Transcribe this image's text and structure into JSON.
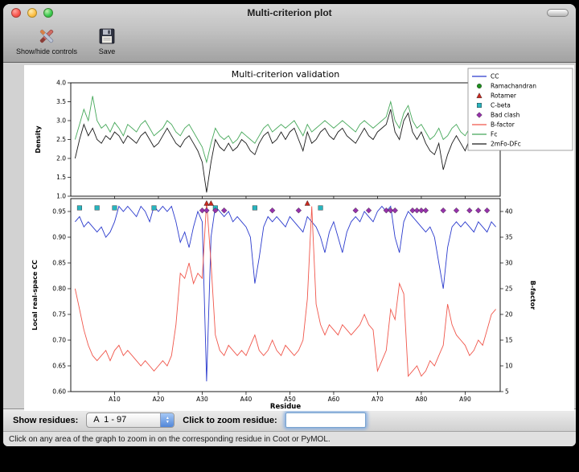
{
  "window": {
    "title": "Multi-criterion plot",
    "toolbar": {
      "items": [
        {
          "label": "Show/hide controls",
          "icon": "crossed-tools-icon"
        },
        {
          "label": "Save",
          "icon": "floppy-disk-icon"
        }
      ]
    },
    "controls": {
      "show_residues_label": "Show residues:",
      "residue_range_value": "A  1 - 97",
      "zoom_residue_label": "Click to zoom residue:",
      "zoom_input_value": ""
    },
    "status_bar": "Click on any area of the graph to zoom in on the corresponding residue in Coot or PyMOL."
  },
  "chart_data": {
    "type": "line",
    "title": "Multi-criterion validation",
    "xlabel": "Residue",
    "x_range": [
      0,
      98
    ],
    "x_ticks": {
      "values": [
        10,
        20,
        30,
        40,
        50,
        60,
        70,
        80,
        90
      ],
      "labels": [
        "A10",
        "A20",
        "A30",
        "A40",
        "A50",
        "A60",
        "A70",
        "A80",
        "A90"
      ]
    },
    "legend": [
      {
        "label": "CC",
        "marker": "line",
        "color": "#2a3acd"
      },
      {
        "label": "Ramachandran",
        "marker": "circle",
        "color": "#1e8f1e"
      },
      {
        "label": "Rotamer",
        "marker": "triangle",
        "color": "#c8281e"
      },
      {
        "label": "C-beta",
        "marker": "square",
        "color": "#28b4be"
      },
      {
        "label": "Bad clash",
        "marker": "diamond",
        "color": "#9632aa"
      },
      {
        "label": "B-factor",
        "marker": "line",
        "color": "#f0564b"
      },
      {
        "label": "Fc",
        "marker": "line",
        "color": "#46a85a"
      },
      {
        "label": "2mFo-DFc",
        "marker": "line",
        "color": "#1a1a1a"
      }
    ],
    "top_plot": {
      "ylabel": "Density",
      "ylim": [
        1.0,
        4.0
      ],
      "yticks": [
        1.0,
        1.5,
        2.0,
        2.5,
        3.0,
        3.5,
        4.0
      ],
      "ytick_labels": [
        "1.0",
        "1.5",
        "2.0",
        "2.5",
        "3.0",
        "3.5",
        "4.0"
      ],
      "series": [
        {
          "name": "Fc",
          "color": "#46a85a",
          "values": [
            2.5,
            2.9,
            3.3,
            3.0,
            3.65,
            3.0,
            2.8,
            2.9,
            2.7,
            2.95,
            2.8,
            2.6,
            2.9,
            2.8,
            2.7,
            2.9,
            3.0,
            2.8,
            2.6,
            2.7,
            2.8,
            3.0,
            2.9,
            2.7,
            2.6,
            2.8,
            2.9,
            2.7,
            2.5,
            2.3,
            1.9,
            2.4,
            2.8,
            2.6,
            2.5,
            2.6,
            2.4,
            2.5,
            2.7,
            2.6,
            2.5,
            2.4,
            2.6,
            2.8,
            2.9,
            2.7,
            2.8,
            2.9,
            2.8,
            2.9,
            3.0,
            2.8,
            2.6,
            2.9,
            2.7,
            2.8,
            2.9,
            3.0,
            2.9,
            2.8,
            2.9,
            3.0,
            2.9,
            2.8,
            2.7,
            2.9,
            3.0,
            2.9,
            2.8,
            2.9,
            3.0,
            3.1,
            3.5,
            3.0,
            2.8,
            3.2,
            3.4,
            3.0,
            2.8,
            2.9,
            2.7,
            2.5,
            2.6,
            2.8,
            2.5,
            2.6,
            2.8,
            2.9,
            2.7,
            2.6,
            2.8,
            3.0,
            2.9,
            3.1,
            3.3,
            3.6,
            3.2
          ]
        },
        {
          "name": "2mFo-DFc",
          "color": "#1a1a1a",
          "values": [
            2.0,
            2.5,
            2.9,
            2.6,
            2.8,
            2.5,
            2.4,
            2.6,
            2.5,
            2.7,
            2.6,
            2.4,
            2.6,
            2.5,
            2.4,
            2.6,
            2.7,
            2.5,
            2.3,
            2.4,
            2.6,
            2.8,
            2.6,
            2.4,
            2.3,
            2.5,
            2.6,
            2.4,
            2.2,
            1.9,
            1.1,
            1.9,
            2.5,
            2.3,
            2.2,
            2.4,
            2.2,
            2.3,
            2.5,
            2.4,
            2.2,
            2.1,
            2.4,
            2.6,
            2.7,
            2.4,
            2.5,
            2.7,
            2.5,
            2.7,
            2.8,
            2.5,
            2.2,
            2.7,
            2.4,
            2.5,
            2.7,
            2.8,
            2.6,
            2.5,
            2.7,
            2.8,
            2.6,
            2.5,
            2.4,
            2.6,
            2.8,
            2.6,
            2.5,
            2.7,
            2.8,
            2.9,
            3.3,
            2.7,
            2.5,
            3.0,
            3.2,
            2.7,
            2.5,
            2.7,
            2.4,
            2.2,
            2.1,
            2.4,
            1.7,
            2.1,
            2.4,
            2.6,
            2.4,
            2.2,
            2.5,
            2.7,
            2.6,
            2.8,
            3.0,
            2.8,
            2.4
          ]
        }
      ]
    },
    "bottom_plot": {
      "ylabel_left": "Local real-space CC",
      "ylim_left": [
        0.6,
        0.975
      ],
      "yticks_left": [
        0.6,
        0.65,
        0.7,
        0.75,
        0.8,
        0.85,
        0.9,
        0.95
      ],
      "ytick_labels_left": [
        "0.60",
        "0.65",
        "0.70",
        "0.75",
        "0.80",
        "0.85",
        "0.90",
        "0.95"
      ],
      "ylabel_right": "B-factor",
      "ylim_right": [
        5,
        42.5
      ],
      "yticks_right": [
        5,
        10,
        15,
        20,
        25,
        30,
        35,
        40
      ],
      "ytick_labels_right": [
        "5",
        "10",
        "15",
        "20",
        "25",
        "30",
        "35",
        "40"
      ],
      "series": [
        {
          "name": "CC",
          "axis": "left",
          "color": "#2a3acd",
          "values": [
            0.93,
            0.94,
            0.92,
            0.93,
            0.92,
            0.91,
            0.92,
            0.9,
            0.91,
            0.93,
            0.96,
            0.95,
            0.96,
            0.95,
            0.94,
            0.96,
            0.95,
            0.93,
            0.96,
            0.95,
            0.96,
            0.95,
            0.96,
            0.93,
            0.89,
            0.91,
            0.88,
            0.92,
            0.95,
            0.93,
            0.62,
            0.9,
            0.96,
            0.95,
            0.94,
            0.95,
            0.93,
            0.94,
            0.93,
            0.92,
            0.9,
            0.81,
            0.86,
            0.92,
            0.94,
            0.93,
            0.94,
            0.93,
            0.92,
            0.94,
            0.93,
            0.92,
            0.91,
            0.94,
            0.93,
            0.92,
            0.9,
            0.87,
            0.91,
            0.93,
            0.9,
            0.87,
            0.91,
            0.93,
            0.94,
            0.93,
            0.95,
            0.94,
            0.93,
            0.95,
            0.96,
            0.95,
            0.96,
            0.9,
            0.87,
            0.93,
            0.95,
            0.94,
            0.93,
            0.92,
            0.91,
            0.92,
            0.9,
            0.85,
            0.8,
            0.88,
            0.92,
            0.93,
            0.92,
            0.93,
            0.92,
            0.91,
            0.93,
            0.92,
            0.91,
            0.93,
            0.92
          ]
        },
        {
          "name": "B-factor",
          "axis": "right",
          "color": "#f0564b",
          "values": [
            25,
            21,
            17,
            14,
            12,
            11,
            12,
            13,
            11,
            13,
            14,
            12,
            13,
            12,
            11,
            10,
            11,
            10,
            9,
            10,
            11,
            10,
            12,
            18,
            28,
            27,
            30,
            26,
            28,
            27,
            42,
            30,
            16,
            13,
            12,
            14,
            13,
            12,
            13,
            12,
            14,
            16,
            13,
            12,
            13,
            15,
            13,
            12,
            14,
            13,
            12,
            13,
            15,
            23,
            41,
            22,
            18,
            16,
            18,
            17,
            16,
            18,
            17,
            16,
            17,
            18,
            20,
            18,
            17,
            9,
            11,
            13,
            21,
            19,
            26,
            24,
            8,
            9,
            10,
            8,
            9,
            11,
            10,
            12,
            14,
            22,
            18,
            16,
            15,
            14,
            12,
            13,
            15,
            14,
            17,
            20,
            21
          ]
        }
      ],
      "markers": [
        {
          "name": "Rotamer",
          "shape": "triangle",
          "color": "#c8281e",
          "y_cc": 0.966,
          "residues": [
            31,
            32,
            54
          ]
        },
        {
          "name": "C-beta",
          "shape": "square",
          "color": "#28b4be",
          "y_cc": 0.957,
          "residues": [
            2,
            6,
            10,
            19,
            33,
            42,
            57
          ]
        },
        {
          "name": "Bad clash",
          "shape": "diamond",
          "color": "#9632aa",
          "y_cc": 0.952,
          "residues": [
            30,
            31,
            33,
            35,
            46,
            52,
            65,
            68,
            72,
            73,
            74,
            78,
            79,
            80,
            81,
            85,
            88,
            91,
            93,
            95
          ]
        },
        {
          "name": "Ramachandran",
          "shape": "circle",
          "color": "#1e8f1e",
          "y_cc": 0.96,
          "residues": []
        }
      ]
    }
  }
}
